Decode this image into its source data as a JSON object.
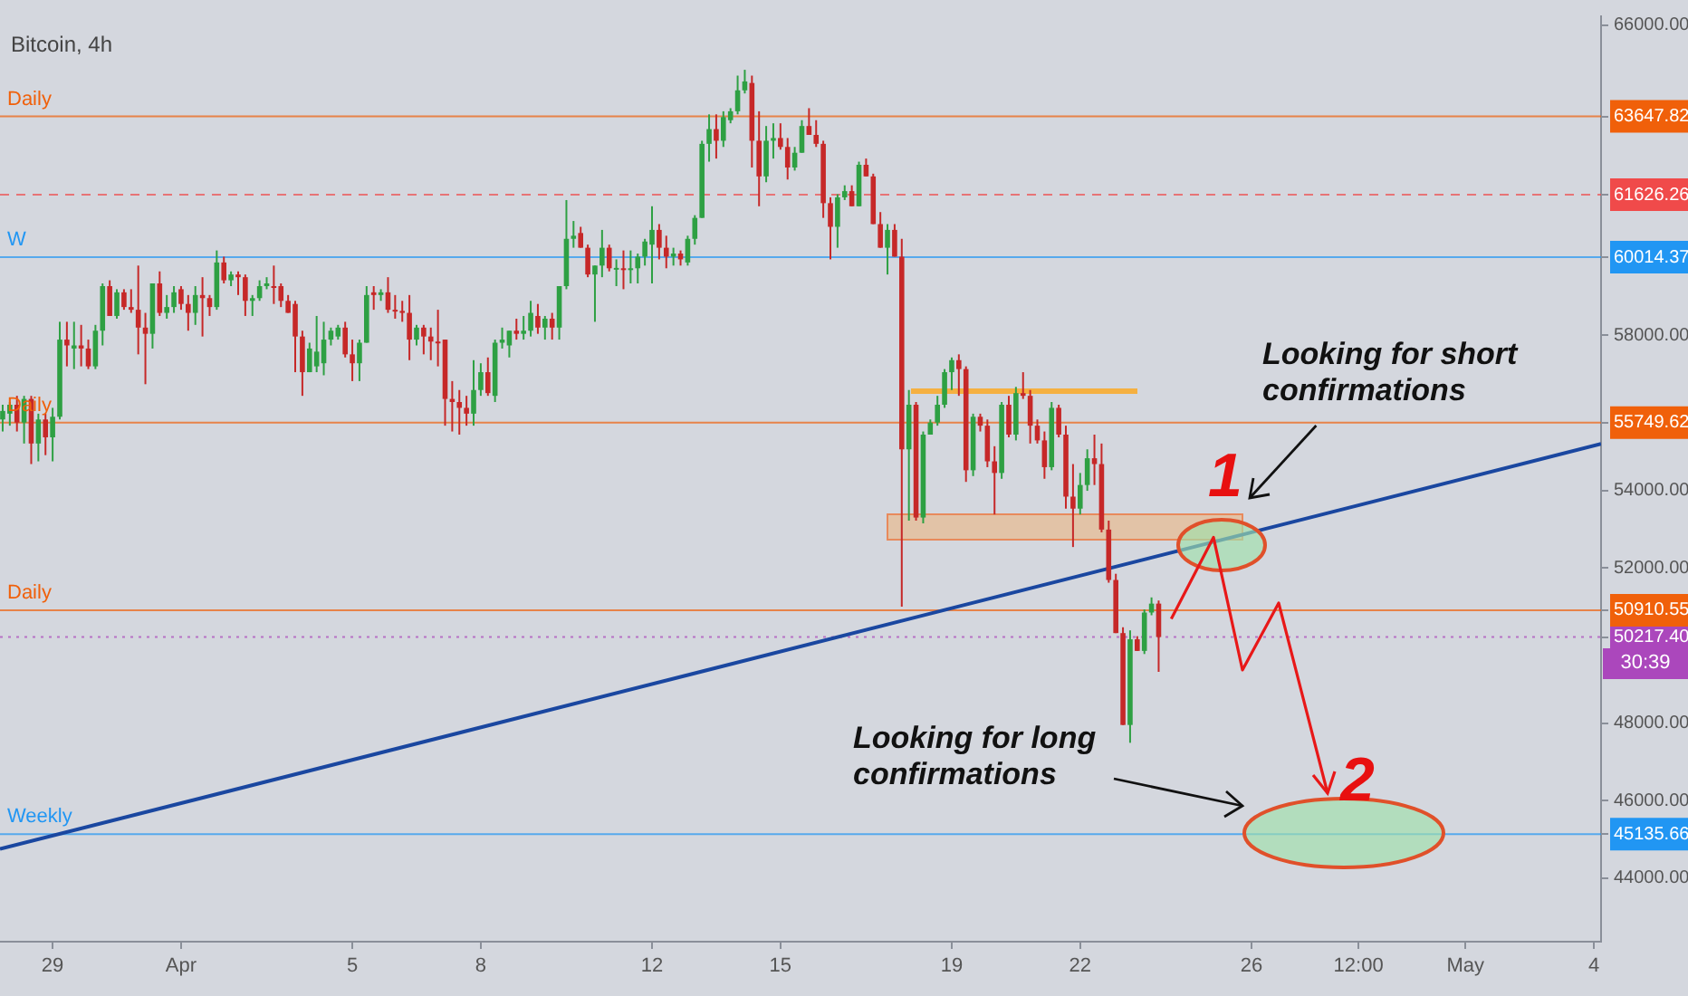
{
  "chart_data": {
    "type": "candlestick",
    "title": "Bitcoin, 4h",
    "x": [
      "--03-27T20:00",
      "--03-28T00:00",
      "--03-28T04:00",
      "--03-28T08:00",
      "--03-28T12:00",
      "--03-28T16:00",
      "--03-28T20:00",
      "--03-29T00:00",
      "--03-29T04:00",
      "--03-29T08:00",
      "--03-29T12:00",
      "--03-29T16:00",
      "--03-29T20:00",
      "--03-30T00:00",
      "--03-30T04:00",
      "--03-30T08:00",
      "--03-30T12:00",
      "--03-30T16:00",
      "--03-30T20:00",
      "--03-31T00:00",
      "--03-31T04:00",
      "--03-31T08:00",
      "--03-31T12:00",
      "--03-31T16:00",
      "--03-31T20:00",
      "--04-01T00:00",
      "--04-01T04:00",
      "--04-01T08:00",
      "--04-01T12:00",
      "--04-01T16:00",
      "--04-01T20:00",
      "--04-02T00:00",
      "--04-02T04:00",
      "--04-02T08:00",
      "--04-02T12:00",
      "--04-02T16:00",
      "--04-02T20:00",
      "--04-03T00:00",
      "--04-03T04:00",
      "--04-03T08:00",
      "--04-03T12:00",
      "--04-03T16:00",
      "--04-03T20:00",
      "--04-04T00:00",
      "--04-04T04:00",
      "--04-04T08:00",
      "--04-04T12:00",
      "--04-04T16:00",
      "--04-04T20:00",
      "--04-05T00:00",
      "--04-05T04:00",
      "--04-05T08:00",
      "--04-05T12:00",
      "--04-05T16:00",
      "--04-05T20:00",
      "--04-06T00:00",
      "--04-06T04:00",
      "--04-06T08:00",
      "--04-06T12:00",
      "--04-06T16:00",
      "--04-06T20:00",
      "--04-07T00:00",
      "--04-07T04:00",
      "--04-07T08:00",
      "--04-07T12:00",
      "--04-07T16:00",
      "--04-07T20:00",
      "--04-08T00:00",
      "--04-08T04:00",
      "--04-08T08:00",
      "--04-08T12:00",
      "--04-08T16:00",
      "--04-08T20:00",
      "--04-09T00:00",
      "--04-09T04:00",
      "--04-09T08:00",
      "--04-09T12:00",
      "--04-09T16:00",
      "--04-09T20:00",
      "--04-10T00:00",
      "--04-10T04:00",
      "--04-10T08:00",
      "--04-10T12:00",
      "--04-10T16:00",
      "--04-10T20:00",
      "--04-11T00:00",
      "--04-11T04:00",
      "--04-11T08:00",
      "--04-11T12:00",
      "--04-11T16:00",
      "--04-11T20:00",
      "--04-12T00:00",
      "--04-12T04:00",
      "--04-12T08:00",
      "--04-12T12:00",
      "--04-12T16:00",
      "--04-12T20:00",
      "--04-13T00:00",
      "--04-13T04:00",
      "--04-13T08:00",
      "--04-13T12:00",
      "--04-13T16:00",
      "--04-13T20:00",
      "--04-14T00:00",
      "--04-14T04:00",
      "--04-14T08:00",
      "--04-14T12:00",
      "--04-14T16:00",
      "--04-14T20:00",
      "--04-15T00:00",
      "--04-15T04:00",
      "--04-15T08:00",
      "--04-15T12:00",
      "--04-15T16:00",
      "--04-15T20:00",
      "--04-16T00:00",
      "--04-16T04:00",
      "--04-16T08:00",
      "--04-16T12:00",
      "--04-16T16:00",
      "--04-16T20:00",
      "--04-17T00:00",
      "--04-17T04:00",
      "--04-17T08:00",
      "--04-17T12:00",
      "--04-17T16:00",
      "--04-17T20:00",
      "--04-18T00:00",
      "--04-18T04:00",
      "--04-18T08:00",
      "--04-18T12:00",
      "--04-18T16:00",
      "--04-18T20:00",
      "--04-19T00:00",
      "--04-19T04:00",
      "--04-19T08:00",
      "--04-19T12:00",
      "--04-19T16:00",
      "--04-19T20:00",
      "--04-20T00:00",
      "--04-20T04:00",
      "--04-20T08:00",
      "--04-20T12:00",
      "--04-20T16:00",
      "--04-20T20:00",
      "--04-21T00:00",
      "--04-21T04:00",
      "--04-21T08:00",
      "--04-21T12:00",
      "--04-21T16:00",
      "--04-21T20:00",
      "--04-22T00:00",
      "--04-22T04:00",
      "--04-22T08:00",
      "--04-22T12:00",
      "--04-22T16:00",
      "--04-22T20:00",
      "--04-23T00:00",
      "--04-23T04:00",
      "--04-23T08:00",
      "--04-23T12:00",
      "--04-23T16:00",
      "--04-23T20:00"
    ],
    "ohlc": [
      [
        55830,
        56210,
        55520,
        56050
      ],
      [
        55980,
        56280,
        55670,
        56210
      ],
      [
        56210,
        56440,
        55520,
        55750
      ],
      [
        55750,
        56440,
        55210,
        56360
      ],
      [
        56360,
        56440,
        54680,
        55210
      ],
      [
        55210,
        55980,
        54750,
        55830
      ],
      [
        55830,
        55980,
        54910,
        55370
      ],
      [
        55370,
        56130,
        54750,
        55900
      ],
      [
        55900,
        58350,
        55830,
        57890
      ],
      [
        57890,
        58350,
        57200,
        57740
      ],
      [
        57660,
        58350,
        57130,
        57740
      ],
      [
        57740,
        58270,
        57200,
        57660
      ],
      [
        57660,
        57890,
        57130,
        57200
      ],
      [
        57200,
        58270,
        57130,
        58120
      ],
      [
        58120,
        59340,
        57740,
        59270
      ],
      [
        59270,
        59420,
        58500,
        58500
      ],
      [
        58500,
        59190,
        58430,
        59110
      ],
      [
        59110,
        59190,
        58660,
        58730
      ],
      [
        58730,
        59190,
        58580,
        58660
      ],
      [
        58660,
        59800,
        57510,
        58200
      ],
      [
        58200,
        58580,
        56740,
        58040
      ],
      [
        58040,
        59340,
        57660,
        59340
      ],
      [
        59340,
        59650,
        58500,
        58580
      ],
      [
        58580,
        59040,
        58430,
        58730
      ],
      [
        58730,
        59270,
        58580,
        59110
      ],
      [
        59190,
        59270,
        58660,
        58810
      ],
      [
        58810,
        59040,
        58120,
        58580
      ],
      [
        58580,
        59270,
        58270,
        59040
      ],
      [
        59040,
        59500,
        57970,
        58960
      ],
      [
        58960,
        59040,
        58500,
        58730
      ],
      [
        58730,
        60190,
        58660,
        59880
      ],
      [
        59880,
        60030,
        59340,
        59420
      ],
      [
        59420,
        59650,
        59270,
        59570
      ],
      [
        59570,
        59650,
        59040,
        59500
      ],
      [
        59500,
        59570,
        58500,
        58890
      ],
      [
        58890,
        59040,
        58500,
        58960
      ],
      [
        58960,
        59420,
        58890,
        59270
      ],
      [
        59270,
        59500,
        59190,
        59340
      ],
      [
        59270,
        59800,
        58810,
        59260
      ],
      [
        59270,
        59340,
        58730,
        58890
      ],
      [
        58890,
        59040,
        58580,
        58580
      ],
      [
        58810,
        58890,
        57050,
        57970
      ],
      [
        57970,
        58120,
        56440,
        57050
      ],
      [
        57050,
        57810,
        57050,
        57660
      ],
      [
        57200,
        58500,
        57050,
        57580
      ],
      [
        57280,
        58350,
        56970,
        57890
      ],
      [
        57890,
        58200,
        57740,
        58120
      ],
      [
        57970,
        58270,
        57890,
        58200
      ],
      [
        58200,
        58350,
        57430,
        57510
      ],
      [
        57510,
        57890,
        56820,
        57280
      ],
      [
        57280,
        57890,
        56820,
        57810
      ],
      [
        57810,
        59270,
        57810,
        59040
      ],
      [
        59110,
        59270,
        58660,
        59040
      ],
      [
        59040,
        59190,
        58890,
        59110
      ],
      [
        59110,
        59500,
        58580,
        58660
      ],
      [
        58660,
        59040,
        58430,
        58630
      ],
      [
        58630,
        58890,
        58350,
        58580
      ],
      [
        58580,
        59040,
        57360,
        57890
      ],
      [
        57890,
        58270,
        57740,
        58200
      ],
      [
        58200,
        58270,
        57510,
        57970
      ],
      [
        57970,
        58200,
        57360,
        57840
      ],
      [
        57840,
        58660,
        57200,
        57810
      ],
      [
        57890,
        57890,
        55670,
        56360
      ],
      [
        56360,
        56820,
        55520,
        56280
      ],
      [
        56280,
        56590,
        55440,
        56130
      ],
      [
        56130,
        56440,
        55670,
        55980
      ],
      [
        55980,
        57360,
        55670,
        56590
      ],
      [
        56590,
        57280,
        56440,
        57050
      ],
      [
        57050,
        57430,
        56440,
        56510
      ],
      [
        56440,
        57890,
        56280,
        57810
      ],
      [
        57810,
        58200,
        57660,
        57890
      ],
      [
        57740,
        58120,
        57430,
        58120
      ],
      [
        58120,
        58430,
        57890,
        58040
      ],
      [
        58040,
        58500,
        57890,
        58120
      ],
      [
        58120,
        58890,
        57970,
        58580
      ],
      [
        58500,
        58810,
        58040,
        58200
      ],
      [
        58200,
        58500,
        57890,
        58430
      ],
      [
        58430,
        58580,
        57890,
        58200
      ],
      [
        58200,
        59270,
        57890,
        59270
      ],
      [
        59270,
        61490,
        59190,
        60490
      ],
      [
        60490,
        60950,
        60260,
        60570
      ],
      [
        60640,
        60800,
        60260,
        60260
      ],
      [
        60260,
        60340,
        59500,
        59570
      ],
      [
        59570,
        59800,
        58350,
        59800
      ],
      [
        59800,
        60720,
        59500,
        60260
      ],
      [
        60260,
        60340,
        59650,
        59730
      ],
      [
        59730,
        59960,
        59270,
        59740
      ],
      [
        59730,
        60190,
        59190,
        59720
      ],
      [
        59720,
        60190,
        59340,
        59730
      ],
      [
        59730,
        60110,
        59340,
        60030
      ],
      [
        60030,
        60490,
        59800,
        60420
      ],
      [
        60340,
        61330,
        59340,
        60720
      ],
      [
        60720,
        60870,
        59960,
        60260
      ],
      [
        60260,
        60570,
        59730,
        60030
      ],
      [
        60030,
        60260,
        59800,
        60110
      ],
      [
        60110,
        60190,
        59800,
        59960
      ],
      [
        59880,
        60570,
        59800,
        60490
      ],
      [
        60490,
        61100,
        60340,
        61030
      ],
      [
        61030,
        63020,
        61030,
        62940
      ],
      [
        62940,
        63700,
        62480,
        63320
      ],
      [
        63320,
        63700,
        62560,
        63020
      ],
      [
        63020,
        63780,
        62860,
        63630
      ],
      [
        63550,
        63860,
        63470,
        63780
      ],
      [
        63780,
        64700,
        63700,
        64320
      ],
      [
        64320,
        64850,
        64240,
        64550
      ],
      [
        64510,
        64700,
        62330,
        63020
      ],
      [
        63020,
        63780,
        61330,
        62100
      ],
      [
        62100,
        63400,
        61950,
        63020
      ],
      [
        63020,
        63470,
        62560,
        63090
      ],
      [
        63090,
        63470,
        62790,
        62860
      ],
      [
        62860,
        63090,
        62020,
        62330
      ],
      [
        62330,
        62860,
        62250,
        62710
      ],
      [
        62710,
        63550,
        62710,
        63400
      ],
      [
        63400,
        63860,
        63170,
        63170
      ],
      [
        63170,
        63550,
        62860,
        62940
      ],
      [
        62940,
        63020,
        61030,
        61410
      ],
      [
        61410,
        61560,
        59960,
        60800
      ],
      [
        60800,
        61640,
        60260,
        61560
      ],
      [
        61560,
        61870,
        61490,
        61720
      ],
      [
        61720,
        61870,
        61330,
        61330
      ],
      [
        61330,
        62480,
        61330,
        62400
      ],
      [
        62400,
        62560,
        62100,
        62100
      ],
      [
        62100,
        62170,
        60870,
        60870
      ],
      [
        60870,
        61180,
        60260,
        60260
      ],
      [
        60260,
        60870,
        59570,
        60720
      ],
      [
        60720,
        60870,
        60030,
        60030
      ],
      [
        60030,
        60490,
        51000,
        55060
      ],
      [
        55060,
        56590,
        53220,
        56210
      ],
      [
        56210,
        56280,
        53220,
        53300
      ],
      [
        53300,
        55520,
        53150,
        55440
      ],
      [
        55440,
        55830,
        55440,
        55750
      ],
      [
        55750,
        56440,
        55670,
        56210
      ],
      [
        56210,
        57130,
        56130,
        57050
      ],
      [
        57050,
        57430,
        56590,
        57360
      ],
      [
        57360,
        57510,
        56440,
        57130
      ],
      [
        57130,
        57200,
        54220,
        54520
      ],
      [
        54520,
        55980,
        54370,
        55900
      ],
      [
        55900,
        55980,
        55520,
        55670
      ],
      [
        55670,
        55830,
        54600,
        54750
      ],
      [
        54750,
        55140,
        53380,
        54450
      ],
      [
        54450,
        56280,
        54300,
        56210
      ],
      [
        56210,
        56440,
        55370,
        55440
      ],
      [
        55440,
        56670,
        55290,
        56510
      ],
      [
        56510,
        57050,
        56360,
        56440
      ],
      [
        56440,
        56590,
        55210,
        55670
      ],
      [
        55670,
        55830,
        55210,
        55290
      ],
      [
        55290,
        55520,
        54300,
        54600
      ],
      [
        54600,
        56280,
        54520,
        56130
      ],
      [
        56130,
        56210,
        55370,
        55440
      ],
      [
        55440,
        55670,
        53530,
        53840
      ],
      [
        53840,
        54680,
        52540,
        53530
      ],
      [
        53530,
        54450,
        53380,
        54140
      ],
      [
        54140,
        55060,
        53990,
        54830
      ],
      [
        54830,
        55440,
        54140,
        54680
      ],
      [
        54680,
        55210,
        52920,
        52990
      ],
      [
        52990,
        53220,
        51620,
        51690
      ],
      [
        51690,
        51850,
        50320,
        50320
      ],
      [
        50320,
        50470,
        47950,
        47950
      ],
      [
        47950,
        50390,
        47490,
        50160
      ],
      [
        50160,
        50240,
        49860,
        49860
      ],
      [
        49860,
        50930,
        49780,
        50850
      ],
      [
        50850,
        51240,
        50780,
        51080
      ],
      [
        51080,
        51160,
        49320,
        50217.4
      ]
    ],
    "series": [
      {
        "type": "line",
        "color": "#1a47a0",
        "x": [
          "--03-27T18:30",
          "--05-04T04:00"
        ],
        "values": [
          44750,
          55200
        ]
      }
    ],
    "xlim": [
      "--03-27T18:30",
      "--05-04T04:00"
    ],
    "xticks": [
      {
        "value": "--03-29",
        "label": "29"
      },
      {
        "value": "--04-01",
        "label": "Apr"
      },
      {
        "value": "--04-05",
        "label": "5"
      },
      {
        "value": "--04-08",
        "label": "8"
      },
      {
        "value": "--04-12",
        "label": "12"
      },
      {
        "value": "--04-15",
        "label": "15"
      },
      {
        "value": "--04-19",
        "label": "19"
      },
      {
        "value": "--04-22",
        "label": "22"
      },
      {
        "value": "--04-26",
        "label": "26"
      },
      {
        "value": "--04-28T12:00",
        "label": "12:00"
      },
      {
        "value": "--05-01",
        "label": "May"
      },
      {
        "value": "--05-04",
        "label": "4"
      }
    ],
    "ylim": [
      42360,
      66230
    ],
    "yticks": [
      {
        "value": 44000,
        "label": "44000.00"
      },
      {
        "value": 45135.66,
        "label": "45135.66"
      },
      {
        "value": 46000,
        "label": "46000.00"
      },
      {
        "value": 48000,
        "label": "48000.00"
      },
      {
        "value": 50217.4,
        "label": "50217.40"
      },
      {
        "value": 50910.55,
        "label": "50910.55"
      },
      {
        "value": 52000,
        "label": "52000.00"
      },
      {
        "value": 54000,
        "label": "54000.00"
      },
      {
        "value": 55749.62,
        "label": "55749.62"
      },
      {
        "value": 58000,
        "label": "58000.00"
      },
      {
        "value": 60014.37,
        "label": "60014.37"
      },
      {
        "value": 61626.26,
        "label": "61626.26"
      },
      {
        "value": 63647.82,
        "label": "63647.82"
      },
      {
        "value": 66000,
        "label": "66000.00"
      }
    ],
    "ref_lines": [
      {
        "axis": "y",
        "value": 63647.82,
        "label": "Daily",
        "color": "#f0600a"
      },
      {
        "axis": "y",
        "value": 61626.26,
        "color": "#f04a4a",
        "line_style": "dashed"
      },
      {
        "axis": "y",
        "value": 60014.37,
        "label": "W",
        "color": "#2196f3"
      },
      {
        "axis": "y",
        "value": 55749.62,
        "label": "Daily",
        "color": "#f0600a"
      },
      {
        "axis": "y",
        "value": 50910.55,
        "label": "Daily",
        "color": "#f0600a"
      },
      {
        "axis": "y",
        "value": 50217.4,
        "color": "#ab47bc",
        "line_style": "dotted"
      },
      {
        "axis": "y",
        "value": 45135.66,
        "label": "Weekly",
        "color": "#2196f3"
      }
    ],
    "annotations": [
      "Looking for short confirmations",
      "1",
      "Looking for long confirmations",
      "2",
      "30:39"
    ]
  }
}
